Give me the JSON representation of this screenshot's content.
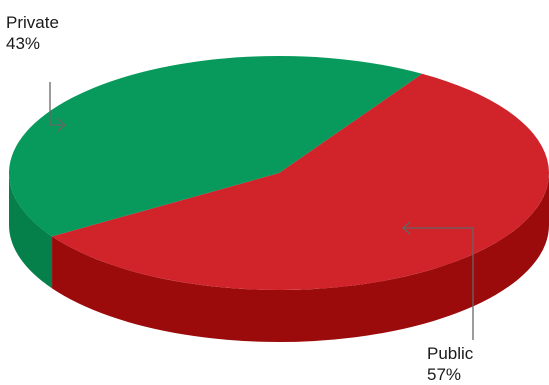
{
  "chart_data": {
    "type": "pie",
    "style": "3d",
    "categories": [
      "Private",
      "Public"
    ],
    "values": [
      43,
      57
    ],
    "value_labels": [
      "43%",
      "57%"
    ],
    "colors": {
      "Private": {
        "top": "#079a5c",
        "side": "#06804b"
      },
      "Public": {
        "top": "#d1232a",
        "side": "#9b0b0c"
      }
    },
    "callout_color": "#666666"
  }
}
